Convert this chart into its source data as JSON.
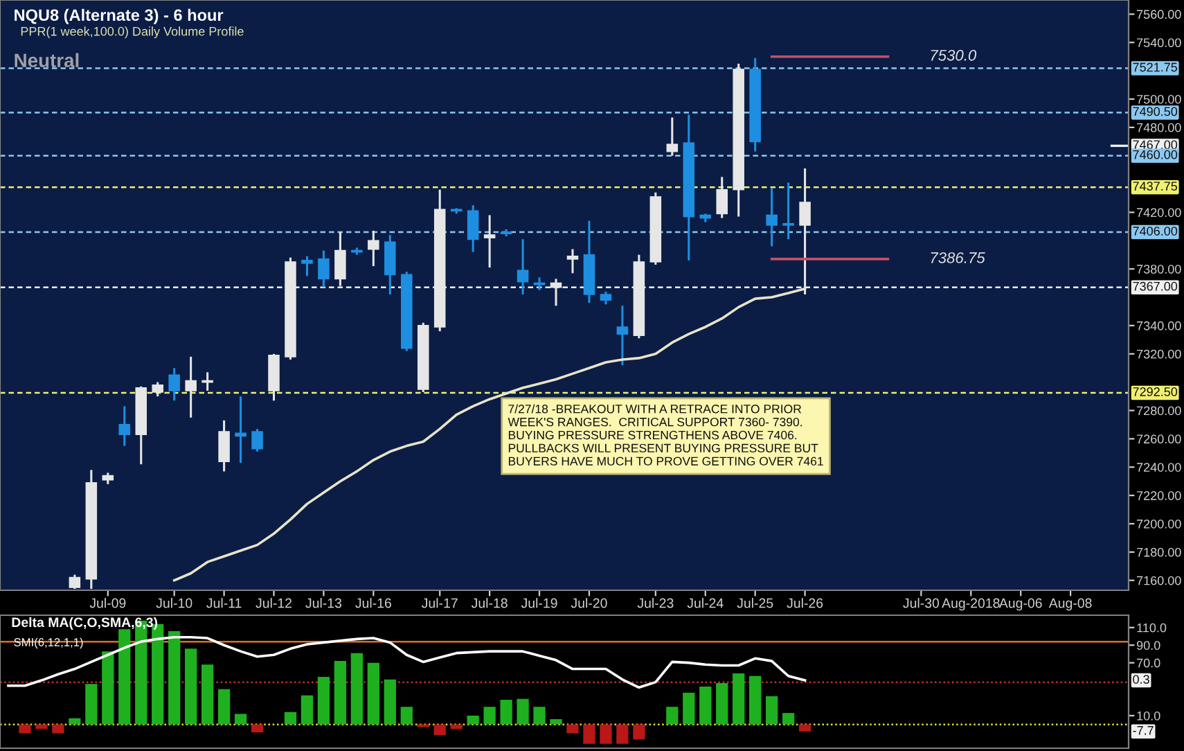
{
  "chart_data": [
    {
      "type": "candlestick",
      "title": "NQU8 (Alternate 3) - 6 hour",
      "subtitle": "PPR(1 week,100.0) Daily Volume Profile",
      "annotations": [
        "Neutral",
        "7/27/18 -BREAKOUT WITH A RETRACE INTO PRIOR WEEK'S RANGES.  CRITICAL SUPPORT 7360- 7390.  BUYING PRESSURE STRENGTHENS ABOVE 7406.  PULLBACKS WILL PRESENT BUYING PRESSURE BUT BUYERS HAVE MUCH TO PROVE GETTING OVER 7461",
        "7530.0",
        "7386.75"
      ],
      "categories": [
        null,
        null,
        null,
        null,
        null,
        null,
        "Jul-09",
        null,
        null,
        null,
        "Jul-10",
        null,
        null,
        "Jul-11",
        null,
        null,
        "Jul-12",
        null,
        null,
        "Jul-13",
        null,
        null,
        "Jul-16",
        null,
        null,
        null,
        "Jul-17",
        null,
        null,
        "Jul-18",
        null,
        null,
        "Jul-19",
        null,
        null,
        "Jul-20",
        null,
        null,
        null,
        "Jul-23",
        null,
        null,
        "Jul-24",
        null,
        null,
        "Jul-25",
        null,
        null,
        "Jul-26",
        null,
        null,
        null,
        null,
        null,
        null,
        "Jul-30",
        null,
        null,
        "Aug-2018",
        null,
        null,
        "Aug-06",
        null,
        null,
        "Aug-08",
        null,
        null,
        null
      ],
      "ohlc": [
        null,
        null,
        null,
        null,
        [
          7155,
          7164,
          7154,
          7162
        ],
        [
          7161,
          7238,
          7154,
          7229
        ],
        [
          7231,
          7236,
          7228,
          7234
        ],
        [
          7270,
          7283,
          7255,
          7263
        ],
        [
          7263,
          7297,
          7242,
          7296
        ],
        [
          7293,
          7300,
          7290,
          7298
        ],
        [
          7305,
          7310,
          7287,
          7294
        ],
        [
          7294,
          7318,
          7275,
          7301
        ],
        [
          7300,
          7307,
          7294,
          7301
        ],
        [
          7244,
          7273,
          7237,
          7265
        ],
        [
          7264,
          7290,
          7243,
          7262
        ],
        [
          7265,
          7267,
          7251,
          7253
        ],
        [
          7294,
          7320,
          7287,
          7319
        ],
        [
          7318,
          7388,
          7316,
          7385
        ],
        [
          7386,
          7389,
          7375,
          7384
        ],
        [
          7387,
          7393,
          7367,
          7373
        ],
        [
          7373,
          7406,
          7368,
          7393
        ],
        [
          7393,
          7395,
          7390,
          7392
        ],
        [
          7394,
          7407,
          7382,
          7400
        ],
        [
          7399,
          7404,
          7362,
          7376
        ],
        [
          7376,
          7378,
          7322,
          7324
        ],
        [
          7295,
          7342,
          7293,
          7340
        ],
        [
          7339,
          7436,
          7336,
          7422
        ],
        [
          7422,
          7423,
          7419,
          7421
        ],
        [
          7421,
          7425,
          7392,
          7401
        ],
        [
          7402,
          7418,
          7381,
          7404
        ],
        [
          7406,
          7408,
          7403,
          7405
        ],
        [
          7379,
          7401,
          7362,
          7371
        ],
        [
          7370,
          7374,
          7365,
          7369
        ],
        [
          7367,
          7373,
          7354,
          7370
        ],
        [
          7387,
          7394,
          7377,
          7389
        ],
        [
          7390,
          7414,
          7356,
          7362
        ],
        [
          7362,
          7364,
          7355,
          7358
        ],
        [
          7339,
          7354,
          7312,
          7334
        ],
        [
          7333,
          7390,
          7331,
          7385
        ],
        [
          7385,
          7434,
          7383,
          7431
        ],
        [
          7463,
          7487,
          7460,
          7468
        ],
        [
          7469,
          7489,
          7386,
          7417
        ],
        [
          7418,
          7419,
          7413,
          7416
        ],
        [
          7419,
          7445,
          7416,
          7436
        ],
        [
          7436,
          7525,
          7417,
          7521
        ],
        [
          7521,
          7529,
          7463,
          7470
        ],
        [
          7418,
          7437,
          7396,
          7411
        ],
        [
          7412,
          7441,
          7401,
          7411
        ],
        [
          7411,
          7451,
          7362,
          7427
        ],
        null,
        null,
        null,
        null,
        null,
        null,
        null,
        null,
        null,
        null,
        null,
        null,
        null,
        null,
        null,
        null,
        null,
        null,
        null
      ],
      "colors": [
        null,
        null,
        null,
        null,
        "#e6e6e6",
        "#e6e6e6",
        "#e6e6e6",
        "#1e8fe0",
        "#e6e6e6",
        "#e6e6e6",
        "#1e8fe0",
        "#e6e6e6",
        "#e6e6e6",
        "#e6e6e6",
        "#1e8fe0",
        "#1e8fe0",
        "#e6e6e6",
        "#e6e6e6",
        "#1e8fe0",
        "#1e8fe0",
        "#e6e6e6",
        "#1e8fe0",
        "#e6e6e6",
        "#1e8fe0",
        "#1e8fe0",
        "#e6e6e6",
        "#e6e6e6",
        "#1e8fe0",
        "#1e8fe0",
        "#e6e6e6",
        "#1e8fe0",
        "#1e8fe0",
        "#1e8fe0",
        "#e6e6e6",
        "#e6e6e6",
        "#1e8fe0",
        "#1e8fe0",
        "#1e8fe0",
        "#e6e6e6",
        "#e6e6e6",
        "#e6e6e6",
        "#1e8fe0",
        "#1e8fe0",
        "#e6e6e6",
        "#e6e6e6",
        "#1e8fe0",
        "#1e8fe0",
        "#1e8fe0",
        "#e6e6e6",
        null,
        null,
        null,
        null,
        null,
        null,
        null,
        null,
        null,
        null,
        null,
        null,
        null,
        null,
        null,
        null,
        null,
        null,
        null
      ],
      "series": [
        {
          "type": "line",
          "color": "#e8e4c8",
          "values": [
            null,
            null,
            null,
            null,
            null,
            null,
            null,
            null,
            null,
            null,
            7160,
            7165,
            7173,
            7177,
            7181,
            7185,
            7193,
            7203,
            7214,
            7222,
            7230,
            7237,
            7245,
            7251,
            7255,
            7258,
            7267,
            7277,
            7283,
            7288,
            7292,
            7296,
            7299,
            7302,
            7306,
            7310,
            7314,
            7316,
            7317,
            7320,
            7328,
            7334,
            7339,
            7345,
            7353,
            7359,
            7360,
            7363,
            7366,
            null,
            null,
            null,
            null,
            null,
            null,
            null,
            null,
            null,
            null,
            null,
            null,
            null,
            null,
            null,
            null,
            null,
            null,
            null
          ]
        },
        {
          "type": "line",
          "color": "#c0506a",
          "values": [
            null,
            null,
            null,
            null,
            null,
            null,
            null,
            null,
            null,
            null,
            null,
            null,
            null,
            null,
            null,
            null,
            null,
            null,
            null,
            null,
            null,
            null,
            null,
            null,
            null,
            null,
            null,
            null,
            null,
            null,
            null,
            null,
            null,
            null,
            null,
            null,
            null,
            null,
            null,
            null,
            null,
            null,
            null,
            null,
            null,
            null,
            7530,
            7530,
            7530,
            7530,
            7530,
            7530,
            7530,
            7530,
            null,
            null,
            null,
            null,
            null,
            null,
            null,
            null,
            null,
            null,
            null,
            null,
            null,
            null
          ]
        },
        {
          "type": "line",
          "color": "#c0506a",
          "values": [
            null,
            null,
            null,
            null,
            null,
            null,
            null,
            null,
            null,
            null,
            null,
            null,
            null,
            null,
            null,
            null,
            null,
            null,
            null,
            null,
            null,
            null,
            null,
            null,
            null,
            null,
            null,
            null,
            null,
            null,
            null,
            null,
            null,
            null,
            null,
            null,
            null,
            null,
            null,
            null,
            null,
            null,
            null,
            null,
            null,
            null,
            7387,
            7387,
            7387,
            7387,
            7387,
            7387,
            7387,
            7387,
            null,
            null,
            null,
            null,
            null,
            null,
            null,
            null,
            null,
            null,
            null,
            null,
            null,
            null
          ]
        }
      ],
      "ref_lines": [
        {
          "axis": "y",
          "value": 7521.75,
          "label": "7521.75",
          "color": "#8cc8f0",
          "line_style": "dashed"
        },
        {
          "axis": "y",
          "value": 7490.5,
          "label": "7490.50",
          "color": "#8cc8f0",
          "line_style": "dashed"
        },
        {
          "axis": "y",
          "value": 7467,
          "label": "7467.00",
          "color": "#f0f0f0"
        },
        {
          "axis": "y",
          "value": 7460,
          "label": "7460.00",
          "color": "#8cc8f0",
          "line_style": "dashed"
        },
        {
          "axis": "y",
          "value": 7437.75,
          "label": "7437.75",
          "color": "#f0f070",
          "line_style": "dashed"
        },
        {
          "axis": "y",
          "value": 7406,
          "label": "7406.00",
          "color": "#8cc8f0",
          "line_style": "dashed"
        },
        {
          "axis": "y",
          "value": 7367,
          "label": "7367.00",
          "color": "#f0f0f0",
          "line_style": "dashed"
        },
        {
          "axis": "y",
          "value": 7292.5,
          "label": "7292.50",
          "color": "#f0f070",
          "line_style": "dashed"
        }
      ],
      "ylim": [
        7153,
        7570
      ],
      "yticks": [
        {
          "value": 7160,
          "label": "7160.00"
        },
        {
          "value": 7180,
          "label": "7180.00"
        },
        {
          "value": 7200,
          "label": "7200.00"
        },
        {
          "value": 7220,
          "label": "7220.00"
        },
        {
          "value": 7240,
          "label": "7240.00"
        },
        {
          "value": 7260,
          "label": "7260.00"
        },
        {
          "value": 7280,
          "label": "7280.00"
        },
        {
          "value": 7320,
          "label": "7320.00"
        },
        {
          "value": 7340,
          "label": "7340.00"
        },
        {
          "value": 7380,
          "label": "7380.00"
        },
        {
          "value": 7420,
          "label": "7420.00"
        },
        {
          "value": 7480,
          "label": "7480.00"
        },
        {
          "value": 7500,
          "label": "7500.00"
        },
        {
          "value": 7540,
          "label": "7540.00"
        },
        {
          "value": 7560,
          "label": "7560.00"
        }
      ]
    },
    {
      "type": "bar",
      "title": "Delta MA(C,O,SMA,6,3)",
      "annotations": [
        "SMI(6,12,1,1)",
        "0.3",
        "-7.7"
      ],
      "categories": [
        null,
        null,
        null,
        null,
        null,
        null,
        null,
        null,
        null,
        null,
        null,
        null,
        null,
        null,
        null,
        null,
        null,
        null,
        null,
        null,
        null,
        null,
        null,
        null,
        null,
        null,
        null,
        null,
        null,
        null,
        null,
        null,
        null,
        null,
        null,
        null,
        null,
        null,
        null,
        null,
        null,
        null,
        null,
        null,
        null,
        null,
        null,
        null,
        null,
        null,
        null,
        null,
        null,
        null,
        null,
        null,
        null,
        null,
        null,
        null,
        null,
        null,
        null,
        null,
        null,
        null,
        null,
        null
      ],
      "series": [
        {
          "type": "bar",
          "values": [
            null,
            -10,
            -5,
            -10,
            7,
            46,
            83,
            108,
            118,
            114,
            106,
            86,
            68,
            40,
            12,
            -9,
            0,
            14,
            33,
            54,
            72,
            81,
            70,
            51,
            20,
            -3,
            -12,
            -5,
            10,
            20,
            28,
            29,
            20,
            6,
            -10,
            -22,
            -22,
            -22,
            -17,
            0,
            20,
            36,
            43,
            47,
            58,
            55,
            32,
            13,
            -8,
            null,
            null,
            null,
            null,
            null,
            null,
            null,
            null,
            null,
            null,
            null,
            null,
            null,
            null,
            null,
            null,
            null,
            null,
            null
          ],
          "colors": [
            null,
            "#b81818",
            "#b81818",
            "#b81818",
            "#1fb01f",
            "#1fb01f",
            "#1fb01f",
            "#1fb01f",
            "#1fb01f",
            "#1fb01f",
            "#1fb01f",
            "#1fb01f",
            "#1fb01f",
            "#1fb01f",
            "#1fb01f",
            "#b81818",
            "#1fb01f",
            "#1fb01f",
            "#1fb01f",
            "#1fb01f",
            "#1fb01f",
            "#1fb01f",
            "#1fb01f",
            "#1fb01f",
            "#1fb01f",
            "#b81818",
            "#b81818",
            "#b81818",
            "#1fb01f",
            "#1fb01f",
            "#1fb01f",
            "#1fb01f",
            "#1fb01f",
            "#1fb01f",
            "#b81818",
            "#b81818",
            "#b81818",
            "#b81818",
            "#b81818",
            "#1fb01f",
            "#1fb01f",
            "#1fb01f",
            "#1fb01f",
            "#1fb01f",
            "#1fb01f",
            "#1fb01f",
            "#1fb01f",
            "#1fb01f",
            "#b81818",
            null,
            null,
            null,
            null,
            null,
            null,
            null,
            null,
            null,
            null,
            null,
            null,
            null,
            null,
            null,
            null,
            null,
            null,
            null
          ]
        },
        {
          "type": "line",
          "color": "#ffffff",
          "values": [
            44,
            44,
            50,
            57,
            63,
            71,
            79,
            87,
            94,
            97,
            99,
            99,
            98,
            90,
            83,
            77,
            79,
            86,
            91,
            93,
            95,
            97,
            98,
            93,
            79,
            71,
            76,
            81,
            82,
            83,
            83,
            83,
            78,
            73,
            63,
            63,
            63,
            51,
            42,
            48,
            71,
            70,
            68,
            67,
            67,
            75,
            72,
            55,
            50,
            null,
            null,
            null,
            null,
            null,
            null,
            null,
            null,
            null,
            null,
            null,
            null,
            null,
            null,
            null,
            null,
            null,
            null,
            null
          ]
        }
      ],
      "ref_lines": [
        {
          "axis": "y",
          "value": 94,
          "color": "#e07020",
          "line_style": "solid"
        },
        {
          "axis": "y",
          "value": 48,
          "color": "#c03030",
          "line_style": "dotted"
        },
        {
          "axis": "y",
          "value": 0,
          "color": "#e0e040",
          "line_style": "dotted"
        }
      ],
      "ylim": [
        -27,
        124
      ],
      "yticks": [
        {
          "value": 110,
          "label": "110.0"
        },
        {
          "value": 90,
          "label": "90.0"
        },
        {
          "value": 70,
          "label": "70.0"
        },
        {
          "value": 10,
          "label": "10.0"
        }
      ]
    }
  ]
}
